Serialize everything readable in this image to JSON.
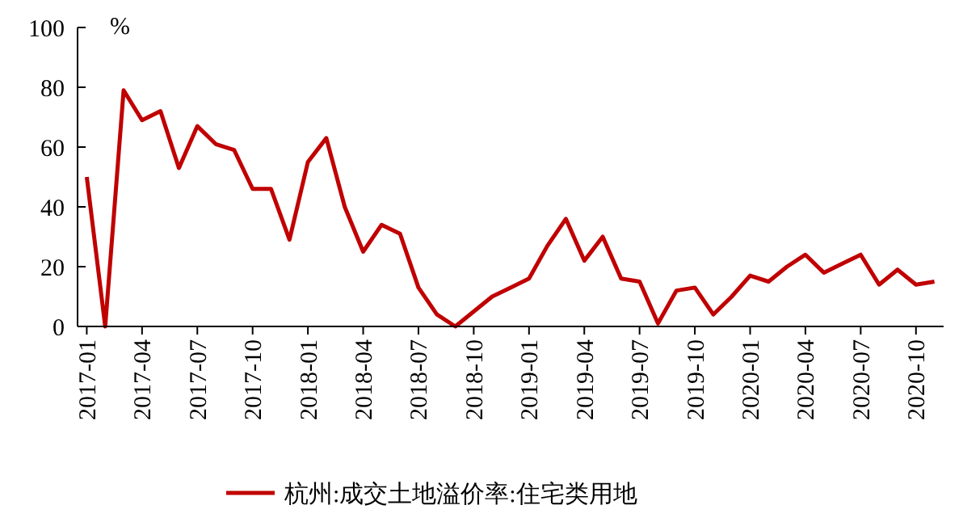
{
  "chart_data": {
    "type": "line",
    "ylabel": "%",
    "categories": [
      "2017-01",
      null,
      null,
      "2017-04",
      null,
      null,
      "2017-07",
      null,
      null,
      "2017-10",
      null,
      null,
      "2018-01",
      null,
      null,
      "2018-04",
      null,
      null,
      "2018-07",
      null,
      null,
      "2018-10",
      null,
      null,
      "2019-01",
      null,
      null,
      "2019-04",
      null,
      null,
      "2019-07",
      null,
      null,
      "2019-10",
      null,
      null,
      "2020-01",
      null,
      null,
      "2020-04",
      null,
      null,
      "2020-07",
      null,
      null,
      "2020-10",
      null
    ],
    "series": [
      {
        "name": "杭州:成交土地溢价率:住宅类用地",
        "color": "#c00000",
        "values": [
          50,
          0,
          79,
          69,
          72,
          53,
          67,
          61,
          59,
          46,
          46,
          29,
          55,
          63,
          40,
          25,
          34,
          31,
          13,
          4,
          0,
          5,
          10,
          13,
          16,
          27,
          36,
          22,
          30,
          16,
          15,
          1,
          12,
          13,
          4,
          10,
          17,
          15,
          20,
          24,
          18,
          21,
          24,
          14,
          19,
          14,
          15
        ]
      }
    ],
    "ylim": [
      0,
      100
    ],
    "yticks": [
      0,
      20,
      40,
      60,
      80,
      100
    ],
    "grid": false,
    "legend": "bottom",
    "marker": "none",
    "line_style": "solid"
  }
}
